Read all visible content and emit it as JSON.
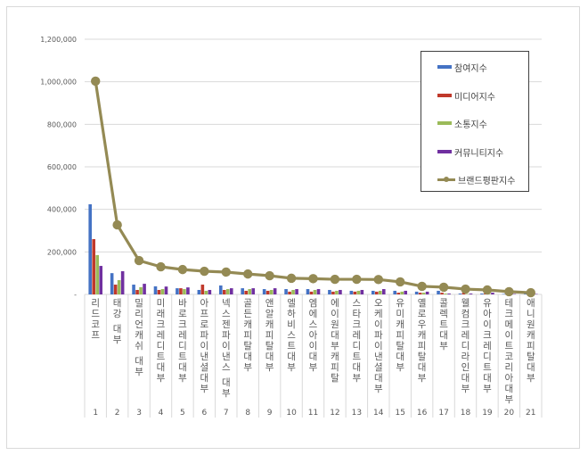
{
  "chart_data": {
    "type": "bar+line",
    "title": "",
    "xlabel": "",
    "ylabel": "",
    "ylim": [
      0,
      1200000
    ],
    "y_ticks": [
      "-",
      "200,000",
      "400,000",
      "600,000",
      "800,000",
      "1,000,000",
      "1,200,000"
    ],
    "grid": true,
    "legend_position": "top-right (inside plot)",
    "categories": [
      "1",
      "2",
      "3",
      "4",
      "5",
      "6",
      "7",
      "8",
      "9",
      "10",
      "11",
      "12",
      "13",
      "14",
      "15",
      "16",
      "17",
      "18",
      "19",
      "20",
      "21"
    ],
    "category_labels": [
      "리드코프",
      "태강 대부",
      "밀리언캐쉬 대부",
      "미래크레디트대부",
      "바로크레디트대부",
      "아프로파이낸셜대부",
      "넥스젠파이낸스 대부",
      "골든캐피탈대부",
      "앤알캐피탈대부",
      "엘하비스트대부",
      "엠에스아이대부",
      "에이원대부캐피탈",
      "스타크레디트대부",
      "오케이파이낸셜대부",
      "유미캐피탈대부",
      "옐로우캐피탈대부",
      "콜렉트대부",
      "웰컴크레디라인대부",
      "유아이크레디트대부",
      "테크메이트코리아대부",
      "애니원캐피탈대부"
    ],
    "series": [
      {
        "name": "참여지수",
        "type": "bar",
        "color": "#4472c4",
        "values": [
          424000,
          100000,
          46000,
          38000,
          29000,
          21000,
          42000,
          29000,
          25000,
          25000,
          25000,
          21000,
          17000,
          17000,
          17000,
          13000,
          17000,
          4000,
          4000,
          2000,
          2000
        ]
      },
      {
        "name": "미디어지수",
        "type": "bar",
        "color": "#c0392b",
        "values": [
          260000,
          46000,
          21000,
          21000,
          29000,
          46000,
          21000,
          17000,
          17000,
          13000,
          13000,
          13000,
          13000,
          13000,
          8000,
          8000,
          8000,
          8000,
          4000,
          2000,
          2000
        ]
      },
      {
        "name": "소통지수",
        "type": "bar",
        "color": "#9bbb59",
        "values": [
          185000,
          67000,
          34000,
          25000,
          25000,
          17000,
          25000,
          25000,
          21000,
          21000,
          21000,
          17000,
          17000,
          17000,
          13000,
          8000,
          4000,
          2000,
          2000,
          2000,
          2000
        ]
      },
      {
        "name": "커뮤니티지수",
        "type": "bar",
        "color": "#7030a0",
        "values": [
          134000,
          109000,
          50000,
          37000,
          33000,
          21000,
          29000,
          29000,
          29000,
          25000,
          25000,
          21000,
          21000,
          25000,
          17000,
          13000,
          4000,
          4000,
          8000,
          2000,
          2000
        ]
      },
      {
        "name": "브랜드평판지수",
        "type": "line",
        "color": "#948a54",
        "values": [
          1003000,
          327000,
          159000,
          130000,
          117000,
          109000,
          105000,
          96000,
          88000,
          76000,
          74000,
          71000,
          71000,
          70000,
          59000,
          38000,
          34000,
          25000,
          21000,
          13000,
          8000
        ]
      }
    ]
  }
}
